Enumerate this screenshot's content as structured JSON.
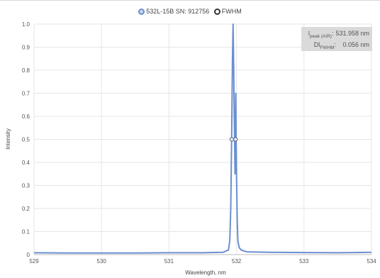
{
  "legend": {
    "items": [
      {
        "name": "532L-15B SN: 912756",
        "color": "#6b8fd1"
      },
      {
        "name": "FWHM",
        "color": "#333333"
      }
    ]
  },
  "stats": {
    "peak": {
      "label_main": "l",
      "label_sub": "peak (AIR)",
      "value": "531.958 nm"
    },
    "fwhm": {
      "label_main": "Dl",
      "label_sub": "FWHM",
      "value": "0.056 nm"
    }
  },
  "chart_data": {
    "type": "line",
    "title": "",
    "xlabel": "Wavelength, nm",
    "ylabel": "Intensity",
    "xlim": [
      529,
      534
    ],
    "ylim": [
      0,
      1.0
    ],
    "xticks": [
      529,
      530,
      531,
      532,
      533,
      534
    ],
    "yticks": [
      0,
      0.1,
      0.2,
      0.3,
      0.4,
      0.5,
      0.6,
      0.7,
      0.8,
      0.9,
      1.0
    ],
    "xtick_labels": [
      "529",
      "530",
      "531",
      "532",
      "533",
      "534"
    ],
    "ytick_labels": [
      "0",
      "0.1",
      "0.2",
      "0.3",
      "0.4",
      "0.5",
      "0.6",
      "0.7",
      "0.8",
      "0.9",
      "1.0"
    ],
    "grid": true,
    "legend_position": "top-center",
    "series": [
      {
        "name": "532L-15B SN: 912756",
        "color": "#6b8fd1",
        "x": [
          529.0,
          529.5,
          530.0,
          530.5,
          531.0,
          531.5,
          531.8,
          531.88,
          531.9,
          531.915,
          531.93,
          531.94,
          531.95,
          531.958,
          531.965,
          531.972,
          531.978,
          531.985,
          531.99,
          531.995,
          532.0,
          532.01,
          532.02,
          532.04,
          532.07,
          532.15,
          532.5,
          533.0,
          533.5,
          534.0
        ],
        "y": [
          0.008,
          0.007,
          0.007,
          0.007,
          0.008,
          0.008,
          0.01,
          0.02,
          0.06,
          0.2,
          0.55,
          0.85,
          1.0,
          0.82,
          0.62,
          0.5,
          0.35,
          0.6,
          0.7,
          0.5,
          0.35,
          0.15,
          0.06,
          0.03,
          0.02,
          0.012,
          0.01,
          0.009,
          0.008,
          0.01
        ]
      },
      {
        "name": "FWHM",
        "color": "#333333",
        "x": [
          531.93,
          531.985
        ],
        "y": [
          0.5,
          0.5
        ]
      }
    ]
  }
}
